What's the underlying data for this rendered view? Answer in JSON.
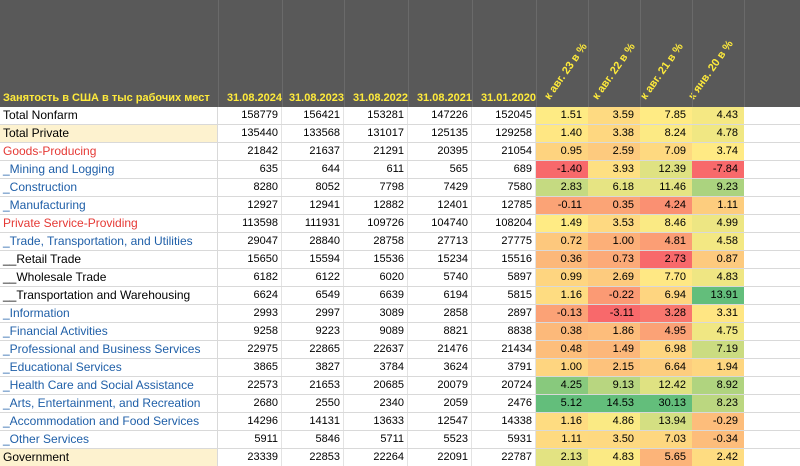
{
  "header": {
    "title": "Занятость в США в тыс рабочих мест",
    "dates": [
      "31.08.2024",
      "31.08.2023",
      "31.08.2022",
      "31.08.2021",
      "31.01.2020"
    ],
    "pct_headers": [
      "к авг. 23 в %",
      "к авг. 22 в %",
      "к авг. 21 в %",
      "к янв. 20 в %"
    ]
  },
  "rows": [
    {
      "name": "Total Nonfarm",
      "style": "black",
      "hl": false,
      "values": [
        "158779",
        "156421",
        "153281",
        "147226",
        "152045"
      ],
      "pct": [
        "1.51",
        "3.59",
        "7.85",
        "4.43"
      ],
      "pctn": [
        1.51,
        3.59,
        7.85,
        4.43
      ]
    },
    {
      "name": "Total Private",
      "style": "black",
      "hl": true,
      "values": [
        "135440",
        "133568",
        "131017",
        "125135",
        "129258"
      ],
      "pct": [
        "1.40",
        "3.38",
        "8.24",
        "4.78"
      ],
      "pctn": [
        1.4,
        3.38,
        8.24,
        4.78
      ]
    },
    {
      "name": "Goods-Producing",
      "style": "red",
      "hl": false,
      "values": [
        "21842",
        "21637",
        "21291",
        "20395",
        "21054"
      ],
      "pct": [
        "0.95",
        "2.59",
        "7.09",
        "3.74"
      ],
      "pctn": [
        0.95,
        2.59,
        7.09,
        3.74
      ]
    },
    {
      "name": "_Mining and Logging",
      "style": "blue",
      "hl": false,
      "values": [
        "635",
        "644",
        "611",
        "565",
        "689"
      ],
      "pct": [
        "-1.40",
        "3.93",
        "12.39",
        "-7.84"
      ],
      "pctn": [
        -1.4,
        3.93,
        12.39,
        -7.84
      ]
    },
    {
      "name": "_Construction",
      "style": "blue",
      "hl": false,
      "values": [
        "8280",
        "8052",
        "7798",
        "7429",
        "7580"
      ],
      "pct": [
        "2.83",
        "6.18",
        "11.46",
        "9.23"
      ],
      "pctn": [
        2.83,
        6.18,
        11.46,
        9.23
      ]
    },
    {
      "name": "_Manufacturing",
      "style": "blue",
      "hl": false,
      "values": [
        "12927",
        "12941",
        "12882",
        "12401",
        "12785"
      ],
      "pct": [
        "-0.11",
        "0.35",
        "4.24",
        "1.11"
      ],
      "pctn": [
        -0.11,
        0.35,
        4.24,
        1.11
      ]
    },
    {
      "name": "Private Service-Providing",
      "style": "red",
      "hl": false,
      "values": [
        "113598",
        "111931",
        "109726",
        "104740",
        "108204"
      ],
      "pct": [
        "1.49",
        "3.53",
        "8.46",
        "4.99"
      ],
      "pctn": [
        1.49,
        3.53,
        8.46,
        4.99
      ]
    },
    {
      "name": "_Trade, Transportation, and Utilities",
      "style": "blue",
      "hl": false,
      "values": [
        "29047",
        "28840",
        "28758",
        "27713",
        "27775"
      ],
      "pct": [
        "0.72",
        "1.00",
        "4.81",
        "4.58"
      ],
      "pctn": [
        0.72,
        1.0,
        4.81,
        4.58
      ]
    },
    {
      "name": "__Retail Trade",
      "style": "black",
      "hl": false,
      "values": [
        "15650",
        "15594",
        "15536",
        "15234",
        "15516"
      ],
      "pct": [
        "0.36",
        "0.73",
        "2.73",
        "0.87"
      ],
      "pctn": [
        0.36,
        0.73,
        2.73,
        0.87
      ]
    },
    {
      "name": "__Wholesale Trade",
      "style": "black",
      "hl": false,
      "values": [
        "6182",
        "6122",
        "6020",
        "5740",
        "5897"
      ],
      "pct": [
        "0.99",
        "2.69",
        "7.70",
        "4.83"
      ],
      "pctn": [
        0.99,
        2.69,
        7.7,
        4.83
      ]
    },
    {
      "name": "__Transportation and Warehousing",
      "style": "black",
      "hl": false,
      "values": [
        "6624",
        "6549",
        "6639",
        "6194",
        "5815"
      ],
      "pct": [
        "1.16",
        "-0.22",
        "6.94",
        "13.91"
      ],
      "pctn": [
        1.16,
        -0.22,
        6.94,
        13.91
      ]
    },
    {
      "name": "_Information",
      "style": "blue",
      "hl": false,
      "values": [
        "2993",
        "2997",
        "3089",
        "2858",
        "2897"
      ],
      "pct": [
        "-0.13",
        "-3.11",
        "3.28",
        "3.31"
      ],
      "pctn": [
        -0.13,
        -3.11,
        3.28,
        3.31
      ]
    },
    {
      "name": "_Financial Activities",
      "style": "blue",
      "hl": false,
      "values": [
        "9258",
        "9223",
        "9089",
        "8821",
        "8838"
      ],
      "pct": [
        "0.38",
        "1.86",
        "4.95",
        "4.75"
      ],
      "pctn": [
        0.38,
        1.86,
        4.95,
        4.75
      ]
    },
    {
      "name": "_Professional and Business Services",
      "style": "blue",
      "hl": false,
      "values": [
        "22975",
        "22865",
        "22637",
        "21476",
        "21434"
      ],
      "pct": [
        "0.48",
        "1.49",
        "6.98",
        "7.19"
      ],
      "pctn": [
        0.48,
        1.49,
        6.98,
        7.19
      ]
    },
    {
      "name": "_Educational Services",
      "style": "blue",
      "hl": false,
      "values": [
        "3865",
        "3827",
        "3784",
        "3624",
        "3791"
      ],
      "pct": [
        "1.00",
        "2.15",
        "6.64",
        "1.94"
      ],
      "pctn": [
        1.0,
        2.15,
        6.64,
        1.94
      ]
    },
    {
      "name": "_Health Care and Social Assistance",
      "style": "blue",
      "hl": false,
      "values": [
        "22573",
        "21653",
        "20685",
        "20079",
        "20724"
      ],
      "pct": [
        "4.25",
        "9.13",
        "12.42",
        "8.92"
      ],
      "pctn": [
        4.25,
        9.13,
        12.42,
        8.92
      ]
    },
    {
      "name": "_Arts, Entertainment, and Recreation",
      "style": "blue",
      "hl": false,
      "values": [
        "2680",
        "2550",
        "2340",
        "2059",
        "2476"
      ],
      "pct": [
        "5.12",
        "14.53",
        "30.13",
        "8.23"
      ],
      "pctn": [
        5.12,
        14.53,
        30.13,
        8.23
      ]
    },
    {
      "name": "_Accommodation and Food Services",
      "style": "blue",
      "hl": false,
      "values": [
        "14296",
        "14131",
        "13633",
        "12547",
        "14338"
      ],
      "pct": [
        "1.16",
        "4.86",
        "13.94",
        "-0.29"
      ],
      "pctn": [
        1.16,
        4.86,
        13.94,
        -0.29
      ]
    },
    {
      "name": "_Other Services",
      "style": "blue",
      "hl": false,
      "values": [
        "5911",
        "5846",
        "5711",
        "5523",
        "5931"
      ],
      "pct": [
        "1.11",
        "3.50",
        "7.03",
        "-0.34"
      ],
      "pctn": [
        1.11,
        3.5,
        7.03,
        -0.34
      ]
    },
    {
      "name": "Government",
      "style": "black",
      "hl": true,
      "values": [
        "23339",
        "22853",
        "22264",
        "22091",
        "22787"
      ],
      "pct": [
        "2.13",
        "4.83",
        "5.65",
        "2.42"
      ],
      "pctn": [
        2.13,
        4.83,
        5.65,
        2.42
      ]
    }
  ]
}
